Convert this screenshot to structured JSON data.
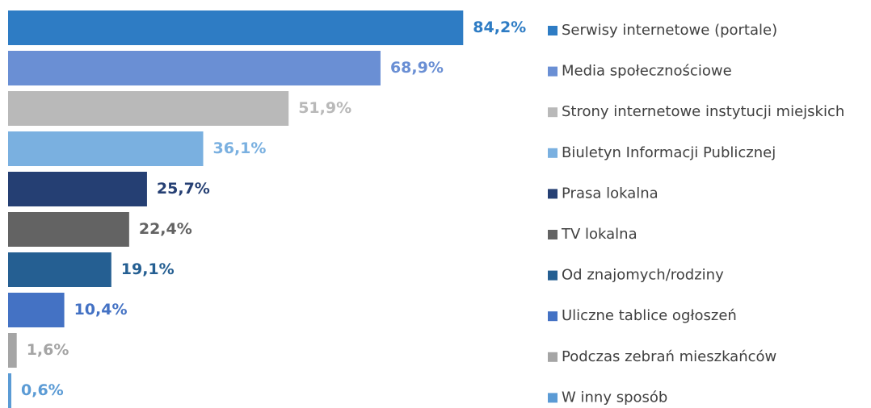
{
  "chart_data": {
    "type": "bar",
    "categories": [
      "Serwisy internetowe (portale)",
      "Media społecznościowe",
      "Strony internetowe instytucji miejskich",
      "Biuletyn Informacji Publicznej",
      "Prasa lokalna",
      "TV lokalna",
      "Od znajomych/rodziny",
      "Uliczne tablice ogłoszeń",
      "Podczas zebrań mieszkańców",
      "W inny sposób"
    ],
    "values": [
      84.2,
      68.9,
      51.9,
      36.1,
      25.7,
      22.4,
      19.1,
      10.4,
      1.6,
      0.6
    ],
    "value_labels": [
      "84,2%",
      "68,9%",
      "51,9%",
      "36,1%",
      "25,7%",
      "22,4%",
      "19,1%",
      "10,4%",
      "1,6%",
      "0,6%"
    ],
    "colors": [
      "#2e7cc4",
      "#6a8fd4",
      "#b9b9b9",
      "#7ab0e0",
      "#253f73",
      "#636363",
      "#255f92",
      "#4472c4",
      "#a5a5a5",
      "#5b9bd5"
    ],
    "legend": "right"
  }
}
